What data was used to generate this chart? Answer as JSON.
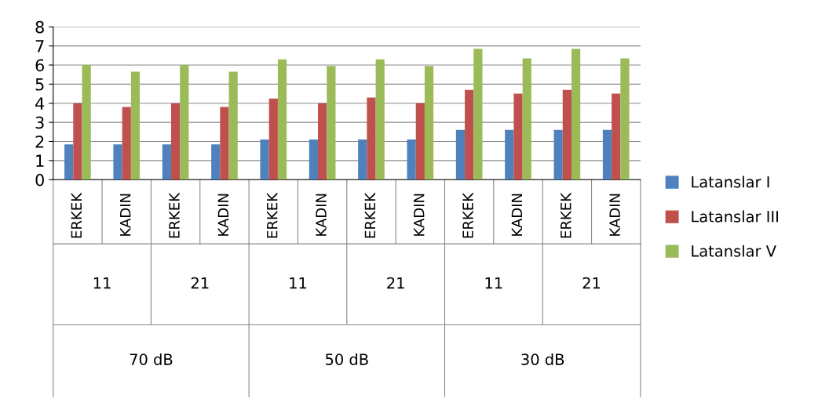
{
  "chart_data": {
    "type": "bar",
    "categories": [
      "ERKEK",
      "KADIN",
      "ERKEK",
      "KADIN",
      "ERKEK",
      "KADIN",
      "ERKEK",
      "KADIN",
      "ERKEK",
      "KADIN",
      "ERKEK",
      "KADIN"
    ],
    "series": [
      {
        "name": "Latanslar I",
        "color": "#4f81bd",
        "values": [
          1.85,
          1.85,
          1.85,
          1.85,
          2.1,
          2.1,
          2.1,
          2.1,
          2.6,
          2.6,
          2.6,
          2.6
        ]
      },
      {
        "name": "Latanslar III",
        "color": "#c0504d",
        "values": [
          4.0,
          3.8,
          4.0,
          3.8,
          4.25,
          4.0,
          4.3,
          4.0,
          4.7,
          4.5,
          4.7,
          4.5
        ]
      },
      {
        "name": "Latanslar V",
        "color": "#9bbb59",
        "values": [
          6.0,
          5.65,
          6.0,
          5.65,
          6.3,
          5.95,
          6.3,
          5.95,
          6.85,
          6.35,
          6.85,
          6.35
        ]
      }
    ],
    "annotations": [
      "11",
      "21",
      "11",
      "21",
      "11",
      "21",
      "70 dB",
      "50 dB",
      "30 dB"
    ],
    "ylim": [
      0,
      8
    ],
    "yticks": [
      0,
      1,
      2,
      3,
      4,
      5,
      6,
      7,
      8
    ],
    "grid": "y",
    "legend": "right"
  }
}
